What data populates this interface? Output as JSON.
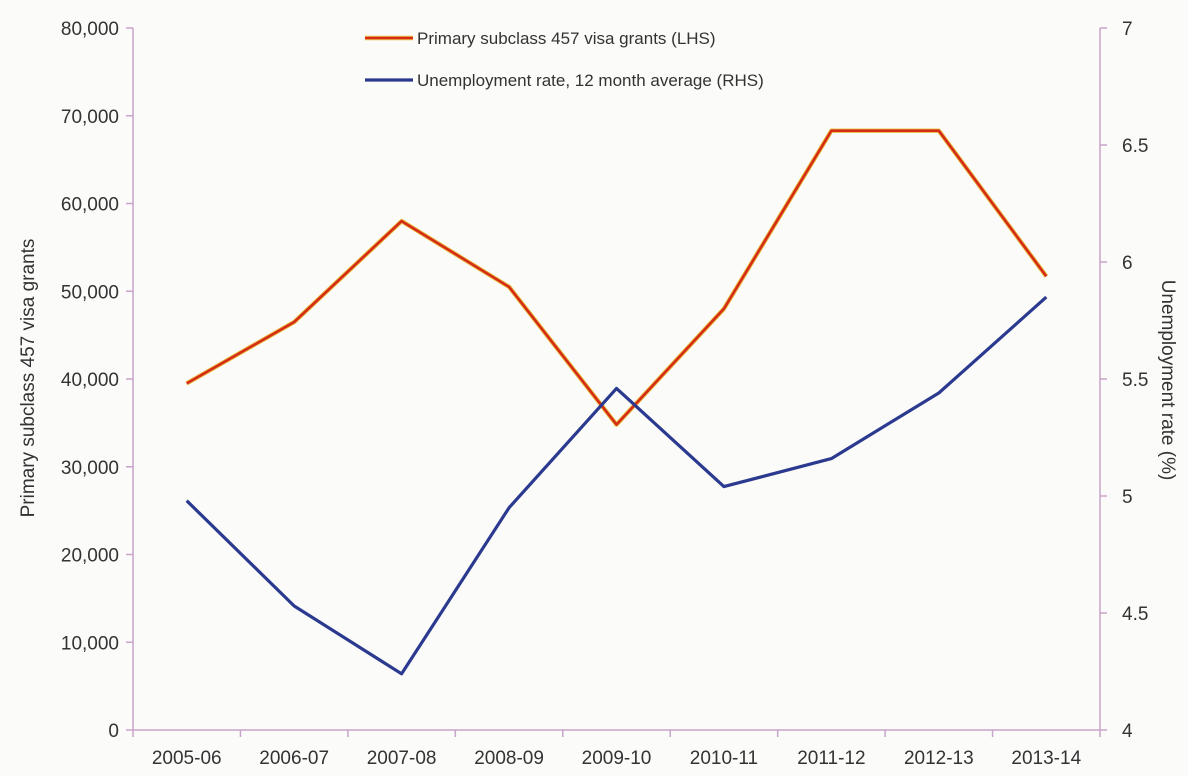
{
  "chart_data": {
    "type": "line",
    "categories": [
      "2005-06",
      "2006-07",
      "2007-08",
      "2008-09",
      "2009-10",
      "2010-11",
      "2011-12",
      "2012-13",
      "2013-14"
    ],
    "series": [
      {
        "name": "Primary subclass 457 visa grants (LHS)",
        "axis": "left",
        "color": "#d62b14",
        "values": [
          39500,
          46500,
          58000,
          50500,
          34800,
          48000,
          68300,
          68300,
          51700
        ]
      },
      {
        "name": "Unemployment rate, 12 month average (RHS)",
        "axis": "right",
        "color": "#2b3a8f",
        "values": [
          4.98,
          4.53,
          4.24,
          4.95,
          5.46,
          5.04,
          5.16,
          5.44,
          5.85
        ]
      }
    ],
    "left_axis": {
      "label": "Primary subclass 457 visa grants",
      "range": [
        0,
        80000
      ],
      "ticks": [
        "0",
        "10,000",
        "20,000",
        "30,000",
        "40,000",
        "50,000",
        "60,000",
        "70,000",
        "80,000"
      ]
    },
    "right_axis": {
      "label": "Unemployment rate (%)",
      "range": [
        4,
        7
      ],
      "ticks": [
        "4",
        "4.5",
        "5",
        "5.5",
        "6",
        "6.5",
        "7"
      ]
    },
    "grid": false,
    "legend_position": "top-center",
    "axis_color": "#c9a3c8"
  }
}
